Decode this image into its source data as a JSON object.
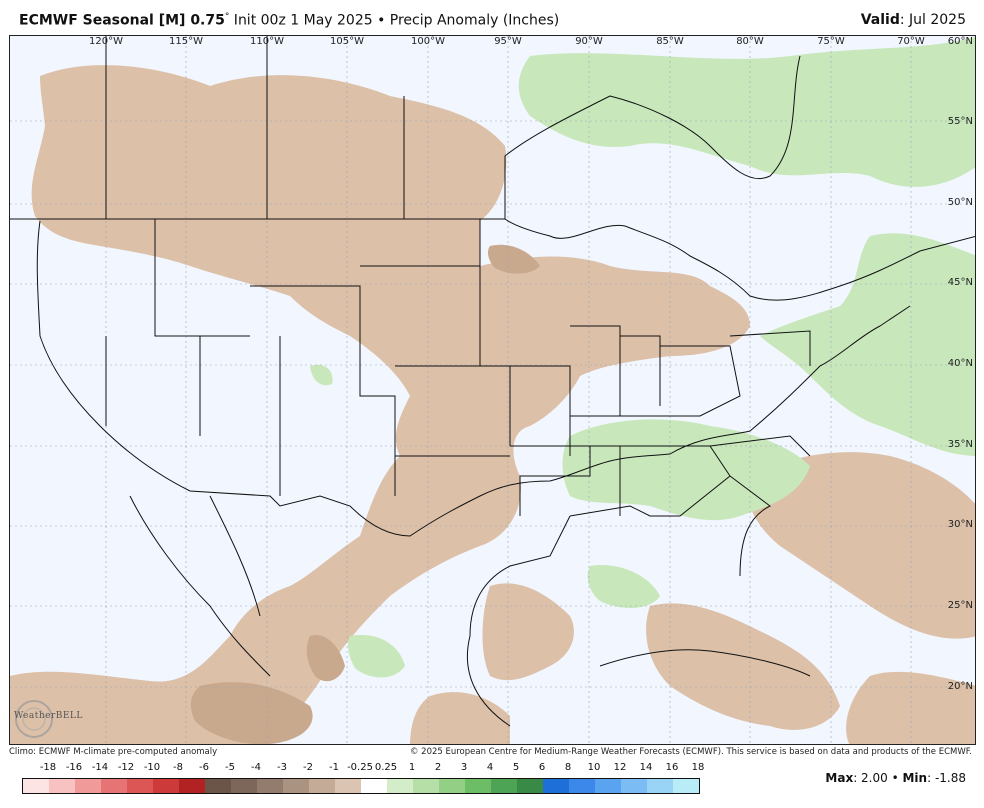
{
  "header": {
    "title_main": "ECMWF Seasonal [M] 0.75",
    "title_degree": "°",
    "title_rest": " Init 00z 1 May 2025 • Precip Anomaly (Inches)",
    "valid_label": "Valid",
    "valid_value": ": Jul 2025"
  },
  "map": {
    "lon_labels": [
      "120°W",
      "115°W",
      "110°W",
      "105°W",
      "100°W",
      "95°W",
      "90°W",
      "85°W",
      "80°W",
      "75°W",
      "70°W"
    ],
    "lat_labels": [
      "60°N",
      "55°N",
      "50°N",
      "45°N",
      "40°N",
      "35°N",
      "30°N",
      "25°N",
      "20°N"
    ],
    "colors": {
      "background": "#f2f6ff",
      "dry_light": "#dcc0a8",
      "dry_mid": "#c9a98e",
      "wet_light": "#c8e8bc",
      "boundary": "#111111"
    }
  },
  "logo": {
    "text": "WeatherBELL"
  },
  "footer": {
    "climo": "Climo: ECMWF M-climate pre-computed anomaly",
    "copyright": "© 2025 European Centre for Medium-Range Weather Forecasts (ECMWF). This service is based on data and products of the ECMWF."
  },
  "colorbar": {
    "labels": [
      "-18",
      "-16",
      "-14",
      "-12",
      "-10",
      "-8",
      "-6",
      "-5",
      "-4",
      "-3",
      "-2",
      "-1",
      "-0.25",
      "0.25",
      "1",
      "2",
      "3",
      "4",
      "5",
      "6",
      "8",
      "10",
      "12",
      "14",
      "16",
      "18"
    ],
    "colors": [
      "#fde4e4",
      "#f8c2c2",
      "#f19a9a",
      "#e77474",
      "#dc5656",
      "#cc3a3a",
      "#b22222",
      "#6b5448",
      "#7d675b",
      "#937c6e",
      "#ab9382",
      "#c4ab98",
      "#dcc4b2",
      "#ffffff",
      "#d3edc8",
      "#b5dfa6",
      "#93cf85",
      "#6dbd67",
      "#4da455",
      "#3a8a47",
      "#1f6fd8",
      "#3b88ea",
      "#5aa3f1",
      "#7bbcf4",
      "#99d3f5",
      "#b8ecf7"
    ]
  },
  "stats": {
    "max_label": "Max",
    "max_value": ": 2.00",
    "sep": " • ",
    "min_label": "Min",
    "min_value": ": -1.88"
  }
}
